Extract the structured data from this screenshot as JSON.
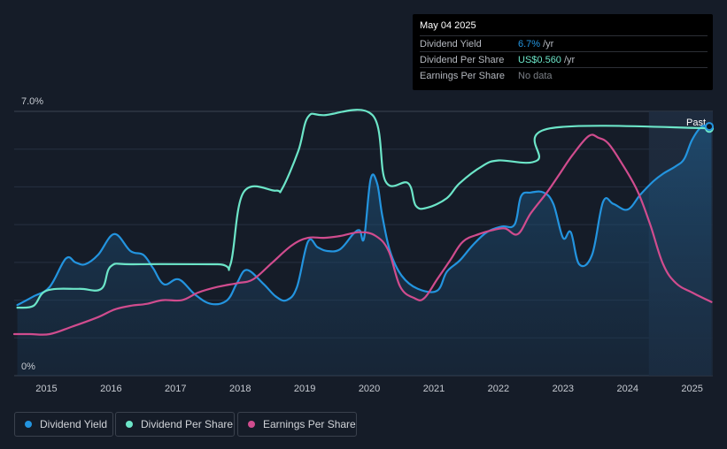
{
  "tooltip": {
    "date": "May 04 2025",
    "rows": [
      {
        "label": "Dividend Yield",
        "value": "6.7%",
        "unit": "/yr",
        "color": "#2394df"
      },
      {
        "label": "Dividend Per Share",
        "value": "US$0.560",
        "unit": "/yr",
        "color": "#6ce5c8"
      },
      {
        "label": "Earnings Per Share",
        "value": "No data",
        "unit": "",
        "color": "#7b7f86"
      }
    ]
  },
  "legend": [
    {
      "label": "Dividend Yield",
      "color": "#2394df"
    },
    {
      "label": "Dividend Per Share",
      "color": "#6ce5c8"
    },
    {
      "label": "Earnings Per Share",
      "color": "#d04c8e"
    }
  ],
  "chart_data": {
    "type": "line",
    "x_ticks": [
      "2015",
      "2016",
      "2017",
      "2018",
      "2019",
      "2020",
      "2021",
      "2022",
      "2023",
      "2024",
      "2025"
    ],
    "y_ticks": [
      "0%",
      "7.0%"
    ],
    "ylim": [
      0,
      7.0
    ],
    "xlim": [
      2014.5,
      2025.32
    ],
    "past_label": "Past",
    "past_region_start": 2024.33,
    "grid": true,
    "legend_position": "bottom",
    "series": [
      {
        "name": "Dividend Yield",
        "key": "yield",
        "color": "#2394df",
        "area": true,
        "points": [
          [
            2014.55,
            1.87
          ],
          [
            2014.8,
            2.1
          ],
          [
            2015.05,
            2.35
          ],
          [
            2015.3,
            3.1
          ],
          [
            2015.45,
            3.0
          ],
          [
            2015.6,
            2.95
          ],
          [
            2015.8,
            3.2
          ],
          [
            2016.05,
            3.75
          ],
          [
            2016.3,
            3.3
          ],
          [
            2016.5,
            3.2
          ],
          [
            2016.65,
            2.85
          ],
          [
            2016.82,
            2.42
          ],
          [
            2017.05,
            2.55
          ],
          [
            2017.3,
            2.15
          ],
          [
            2017.55,
            1.9
          ],
          [
            2017.8,
            2.0
          ],
          [
            2017.95,
            2.45
          ],
          [
            2018.1,
            2.8
          ],
          [
            2018.35,
            2.45
          ],
          [
            2018.55,
            2.1
          ],
          [
            2018.72,
            2.0
          ],
          [
            2018.88,
            2.35
          ],
          [
            2019.05,
            3.55
          ],
          [
            2019.2,
            3.4
          ],
          [
            2019.35,
            3.3
          ],
          [
            2019.55,
            3.35
          ],
          [
            2019.75,
            3.75
          ],
          [
            2019.85,
            3.85
          ],
          [
            2019.92,
            3.65
          ],
          [
            2020.02,
            5.2
          ],
          [
            2020.12,
            5.1
          ],
          [
            2020.2,
            4.25
          ],
          [
            2020.32,
            3.3
          ],
          [
            2020.5,
            2.65
          ],
          [
            2020.75,
            2.3
          ],
          [
            2021.05,
            2.25
          ],
          [
            2021.2,
            2.75
          ],
          [
            2021.4,
            3.05
          ],
          [
            2021.6,
            3.45
          ],
          [
            2021.82,
            3.8
          ],
          [
            2022.05,
            3.95
          ],
          [
            2022.25,
            4.0
          ],
          [
            2022.35,
            4.75
          ],
          [
            2022.5,
            4.85
          ],
          [
            2022.7,
            4.85
          ],
          [
            2022.85,
            4.55
          ],
          [
            2023.0,
            3.65
          ],
          [
            2023.12,
            3.8
          ],
          [
            2023.25,
            2.95
          ],
          [
            2023.45,
            3.2
          ],
          [
            2023.62,
            4.6
          ],
          [
            2023.78,
            4.55
          ],
          [
            2024.0,
            4.4
          ],
          [
            2024.2,
            4.8
          ],
          [
            2024.4,
            5.15
          ],
          [
            2024.55,
            5.35
          ],
          [
            2024.75,
            5.55
          ],
          [
            2024.88,
            5.75
          ],
          [
            2025.0,
            6.25
          ],
          [
            2025.15,
            6.6
          ],
          [
            2025.3,
            6.6
          ]
        ]
      },
      {
        "name": "Dividend Per Share",
        "key": "dps",
        "color": "#6ce5c8",
        "points": [
          [
            2014.55,
            1.8
          ],
          [
            2014.8,
            1.85
          ],
          [
            2015.0,
            2.25
          ],
          [
            2015.5,
            2.3
          ],
          [
            2015.85,
            2.3
          ],
          [
            2016.0,
            2.9
          ],
          [
            2016.35,
            2.95
          ],
          [
            2017.65,
            2.95
          ],
          [
            2017.85,
            2.95
          ],
          [
            2018.05,
            4.85
          ],
          [
            2018.55,
            4.9
          ],
          [
            2018.65,
            4.95
          ],
          [
            2018.9,
            5.95
          ],
          [
            2019.05,
            6.85
          ],
          [
            2019.3,
            6.9
          ],
          [
            2020.05,
            6.9
          ],
          [
            2020.25,
            5.15
          ],
          [
            2020.6,
            5.1
          ],
          [
            2020.72,
            4.5
          ],
          [
            2020.9,
            4.45
          ],
          [
            2021.2,
            4.7
          ],
          [
            2021.4,
            5.1
          ],
          [
            2021.75,
            5.55
          ],
          [
            2022.0,
            5.7
          ],
          [
            2022.6,
            5.7
          ],
          [
            2022.8,
            6.55
          ],
          [
            2025.32,
            6.55
          ]
        ]
      },
      {
        "name": "Earnings Per Share",
        "key": "eps",
        "color": "#d04c8e",
        "points": [
          [
            2014.5,
            1.1
          ],
          [
            2014.75,
            1.1
          ],
          [
            2015.05,
            1.1
          ],
          [
            2015.4,
            1.3
          ],
          [
            2015.8,
            1.55
          ],
          [
            2016.05,
            1.75
          ],
          [
            2016.3,
            1.85
          ],
          [
            2016.55,
            1.9
          ],
          [
            2016.8,
            2.0
          ],
          [
            2017.1,
            2.0
          ],
          [
            2017.35,
            2.2
          ],
          [
            2017.65,
            2.35
          ],
          [
            2017.95,
            2.45
          ],
          [
            2018.2,
            2.55
          ],
          [
            2018.5,
            3.0
          ],
          [
            2018.8,
            3.45
          ],
          [
            2019.05,
            3.65
          ],
          [
            2019.3,
            3.65
          ],
          [
            2019.55,
            3.7
          ],
          [
            2019.85,
            3.8
          ],
          [
            2020.1,
            3.7
          ],
          [
            2020.3,
            3.3
          ],
          [
            2020.48,
            2.35
          ],
          [
            2020.7,
            2.05
          ],
          [
            2020.85,
            2.05
          ],
          [
            2021.05,
            2.55
          ],
          [
            2021.25,
            3.05
          ],
          [
            2021.45,
            3.55
          ],
          [
            2021.7,
            3.75
          ],
          [
            2021.9,
            3.85
          ],
          [
            2022.1,
            3.9
          ],
          [
            2022.3,
            3.75
          ],
          [
            2022.5,
            4.3
          ],
          [
            2022.75,
            4.85
          ],
          [
            2022.95,
            5.35
          ],
          [
            2023.15,
            5.85
          ],
          [
            2023.4,
            6.35
          ],
          [
            2023.55,
            6.3
          ],
          [
            2023.7,
            6.15
          ],
          [
            2023.9,
            5.65
          ],
          [
            2024.15,
            4.9
          ],
          [
            2024.35,
            4.0
          ],
          [
            2024.55,
            2.95
          ],
          [
            2024.75,
            2.45
          ],
          [
            2025.0,
            2.2
          ],
          [
            2025.3,
            1.95
          ]
        ]
      }
    ]
  }
}
